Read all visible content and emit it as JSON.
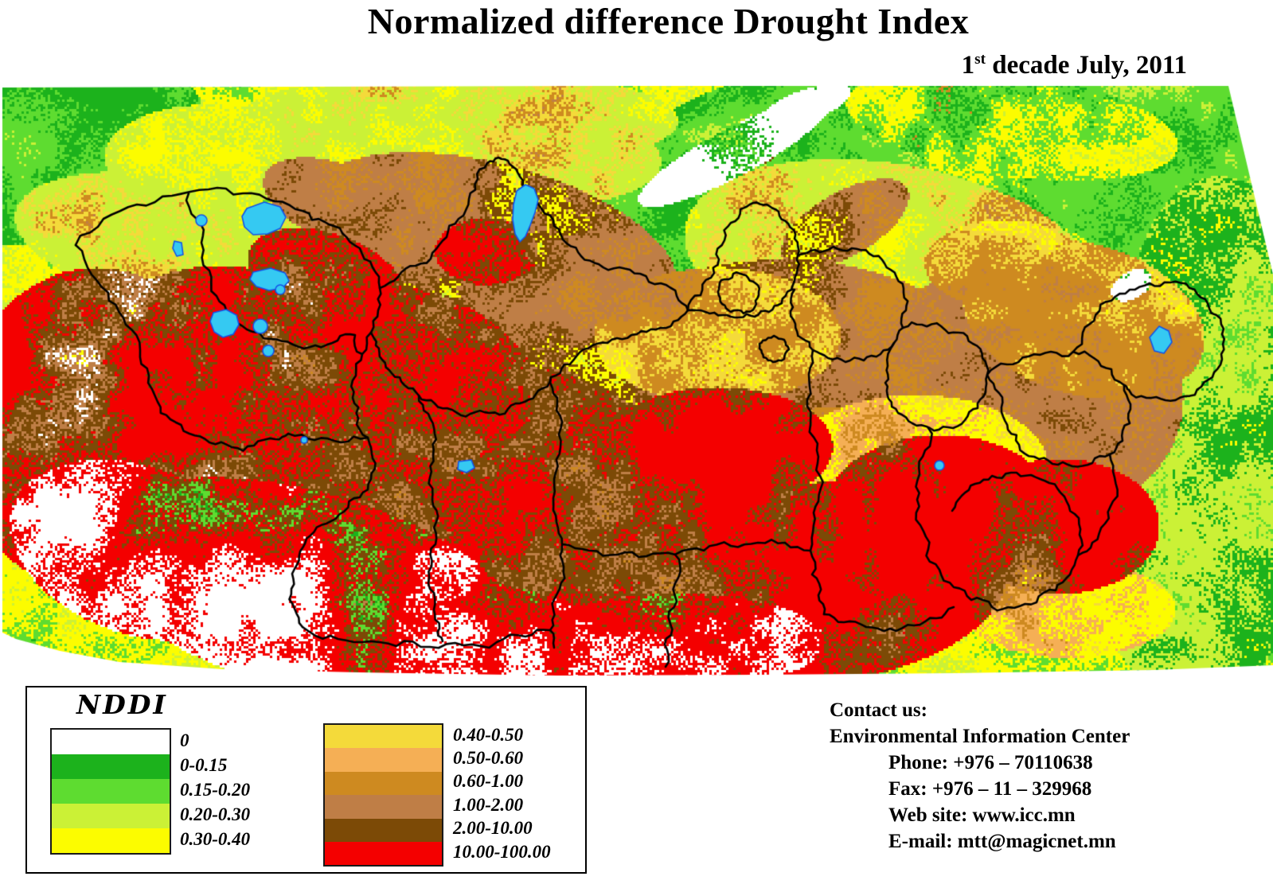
{
  "title": "Normalized difference Drought Index",
  "date": {
    "prefix": "1",
    "superscript": "st",
    "rest": " decade July, 2011"
  },
  "legend": {
    "title": "NDDI",
    "left_entries": [
      {
        "label": "0",
        "color": "#FFFFFF"
      },
      {
        "label": "0-0.15",
        "color": "#1CB21C"
      },
      {
        "label": "0.15-0.20",
        "color": "#5EDC30"
      },
      {
        "label": "0.20-0.30",
        "color": "#CBF136"
      },
      {
        "label": "0.30-0.40",
        "color": "#FCFC00"
      }
    ],
    "right_entries": [
      {
        "label": "0.40-0.50",
        "color": "#F4DA3A"
      },
      {
        "label": "0.50-0.60",
        "color": "#F5AF55"
      },
      {
        "label": "0.60-1.00",
        "color": "#CE8A20"
      },
      {
        "label": "1.00-2.00",
        "color": "#BF7E46"
      },
      {
        "label": "2.00-10.00",
        "color": "#7C4A06"
      },
      {
        "label": "10.00-100.00",
        "color": "#F40000"
      }
    ]
  },
  "contact": {
    "heading": "Contact us:",
    "org": "Environmental Information Center",
    "lines": [
      "Phone: +976 – 70110638",
      "Fax: +976 – 11 – 329968",
      "Web site: www.icc.mn",
      "E-mail: mtt@magicnet.mn"
    ]
  },
  "map": {
    "lake_color": "#35C9F2",
    "lake_outline_color": "#1353E8",
    "boundary_color": "#000000"
  }
}
